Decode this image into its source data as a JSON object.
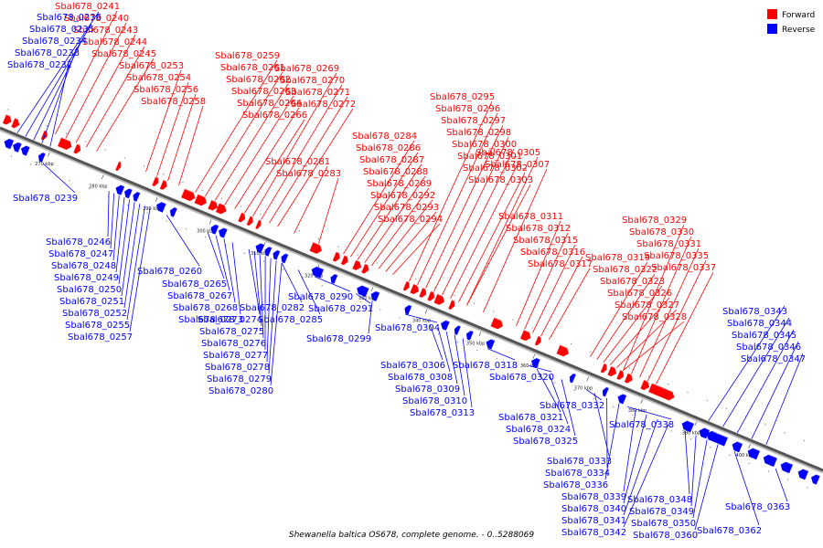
{
  "caption": "Shewanella baltica OS678, complete genome. - 0..5288069",
  "legend": [
    {
      "label": "Forward",
      "color": "#ff0000"
    },
    {
      "label": "Reverse",
      "color": "#0000ff"
    }
  ],
  "colors": {
    "forward": "#ff0000",
    "reverse": "#0000ff",
    "backbone": "#555555"
  },
  "ticks": [
    "270 kbp",
    "280 kbp",
    "290 kbp",
    "300 kbp",
    "310 kbp",
    "320 kbp",
    "330 kbp",
    "340 kbp",
    "350 kbp",
    "360 kbp",
    "370 kbp",
    "380 kbp",
    "390 kbp",
    "400 kbp"
  ],
  "forward_labels": [
    "Sbal678_0241",
    "Sbal678_0240",
    "Sbal678_0243",
    "Sbal678_0244",
    "Sbal678_0245",
    "Sbal678_0253",
    "Sbal678_0254",
    "Sbal678_0256",
    "Sbal678_0258",
    "Sbal678_0259",
    "Sbal678_0261",
    "Sbal678_0262",
    "Sbal678_0263",
    "Sbal678_0264",
    "Sbal678_0266",
    "Sbal678_0269",
    "Sbal678_0270",
    "Sbal678_0271",
    "Sbal678_0272",
    "Sbal678_0281",
    "Sbal678_0283",
    "Sbal678_0284",
    "Sbal678_0286",
    "Sbal678_0287",
    "Sbal678_0288",
    "Sbal678_0289",
    "Sbal678_0292",
    "Sbal678_0293",
    "Sbal678_0294",
    "Sbal678_0295",
    "Sbal678_0296",
    "Sbal678_0297",
    "Sbal678_0298",
    "Sbal678_0300",
    "Sbal678_0301",
    "Sbal678_0302",
    "Sbal678_0303",
    "Sbal678_0305",
    "Sbal678_0307",
    "Sbal678_0311",
    "Sbal678_0312",
    "Sbal678_0315",
    "Sbal678_0316",
    "Sbal678_0317",
    "Sbal678_0319",
    "Sbal678_0322",
    "Sbal678_0323",
    "Sbal678_0326",
    "Sbal678_0327",
    "Sbal678_0328",
    "Sbal678_0329",
    "Sbal678_0330",
    "Sbal678_0331",
    "Sbal678_0335",
    "Sbal678_0337"
  ],
  "reverse_labels": [
    "Sbal678_0236",
    "Sbal678_0235",
    "Sbal678_0234",
    "Sbal678_0233",
    "Sbal678_0232",
    "Sbal678_0239",
    "Sbal678_0246",
    "Sbal678_0247",
    "Sbal678_0248",
    "Sbal678_0249",
    "Sbal678_0250",
    "Sbal678_0251",
    "Sbal678_0252",
    "Sbal678_0255",
    "Sbal678_0257",
    "Sbal678_0260",
    "Sbal678_0265",
    "Sbal678_0267",
    "Sbal678_0268",
    "Sbal678_0273",
    "Sbal678_0274",
    "Sbal678_0275",
    "Sbal678_0276",
    "Sbal678_0277",
    "Sbal678_0278",
    "Sbal678_0279",
    "Sbal678_0280",
    "Sbal678_0282",
    "Sbal678_0285",
    "Sbal678_0290",
    "Sbal678_0291",
    "Sbal678_0299",
    "Sbal678_0304",
    "Sbal678_0306",
    "Sbal678_0308",
    "Sbal678_0309",
    "Sbal678_0310",
    "Sbal678_0313",
    "Sbal678_0318",
    "Sbal678_0320",
    "Sbal678_0321",
    "Sbal678_0324",
    "Sbal678_0325",
    "Sbal678_0332",
    "Sbal678_0333",
    "Sbal678_0334",
    "Sbal678_0336",
    "Sbal678_0338",
    "Sbal678_0339",
    "Sbal678_0340",
    "Sbal678_0341",
    "Sbal678_0342",
    "Sbal678_0343",
    "Sbal678_0344",
    "Sbal678_0345",
    "Sbal678_0346",
    "Sbal678_0347",
    "Sbal678_0348",
    "Sbal678_0349",
    "Sbal678_0350",
    "Sbal678_0360",
    "Sbal678_0362",
    "Sbal678_0363"
  ]
}
